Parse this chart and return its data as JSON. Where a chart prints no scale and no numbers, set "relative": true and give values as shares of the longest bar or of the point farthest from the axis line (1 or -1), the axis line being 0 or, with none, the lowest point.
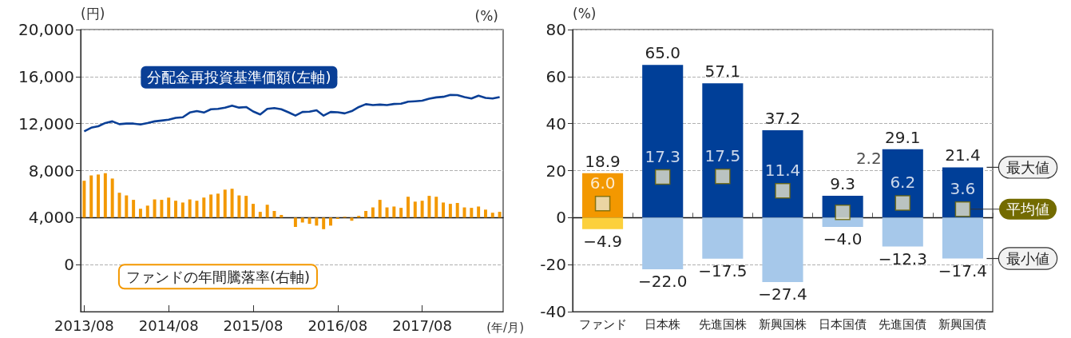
{
  "chart_data": [
    {
      "type": "line",
      "ylabel": "(円)",
      "y2label": "(%)",
      "xlabel": "(年/月)",
      "categories": [
        "2013/08",
        null,
        null,
        null,
        null,
        null,
        null,
        null,
        null,
        null,
        null,
        null,
        "2014/08",
        null,
        null,
        null,
        null,
        null,
        null,
        null,
        null,
        null,
        null,
        null,
        "2015/08",
        null,
        null,
        null,
        null,
        null,
        null,
        null,
        null,
        null,
        null,
        null,
        "2016/08",
        null,
        null,
        null,
        null,
        null,
        null,
        null,
        null,
        null,
        null,
        null,
        "2017/08",
        null,
        null,
        null,
        null,
        null,
        null,
        null,
        null,
        null,
        null,
        null
      ],
      "series": [
        {
          "name": "分配金再投資基準価額(左軸)",
          "color": "#0a3f96",
          "values": [
            11340,
            11650,
            11770,
            12050,
            12190,
            11950,
            12000,
            12000,
            11930,
            12050,
            12190,
            12260,
            12330,
            12490,
            12540,
            12940,
            13060,
            12940,
            13220,
            13250,
            13360,
            13530,
            13360,
            13410,
            13030,
            12780,
            13250,
            13320,
            13220,
            12960,
            12680,
            12990,
            13010,
            13130,
            12680,
            12990,
            12960,
            12870,
            13060,
            13410,
            13650,
            13570,
            13620,
            13570,
            13670,
            13690,
            13860,
            13900,
            13950,
            14120,
            14230,
            14280,
            14440,
            14420,
            14260,
            14140,
            14370,
            14190,
            14140,
            14260
          ]
        }
      ],
      "ylim": [
        -4000,
        20000
      ],
      "yticks": [
        0,
        {
          "value": 4000,
          "label": "4,000"
        },
        {
          "value": 8000,
          "label": "8,000"
        },
        {
          "value": 12000,
          "label": "12,000"
        },
        {
          "value": 16000,
          "label": "16,000"
        },
        {
          "value": 20000,
          "label": "20,000"
        }
      ],
      "grid": "y",
      "marker": "none"
    },
    {
      "type": "bar",
      "relative": true,
      "categories": [
        null,
        null,
        null,
        null,
        null,
        null,
        null,
        null,
        null,
        null,
        null,
        null,
        null,
        null,
        null,
        null,
        null,
        null,
        null,
        null,
        null,
        null,
        null,
        null,
        null,
        null,
        null,
        null,
        null,
        null,
        null,
        null,
        null,
        null,
        null,
        null,
        null,
        null,
        null,
        null,
        null,
        null,
        null,
        null,
        null,
        null,
        null,
        null,
        null,
        null,
        null,
        null,
        null,
        null,
        null,
        null,
        null,
        null,
        null,
        null
      ],
      "series": [
        {
          "name": "ファンドの年間騰落率(右軸)",
          "color": "#f39800",
          "values": [
            0.83,
            0.95,
            0.97,
            1,
            0.88,
            0.56,
            0.5,
            0.4,
            0.2,
            0.27,
            0.41,
            0.4,
            0.45,
            0.38,
            0.34,
            0.41,
            0.38,
            0.45,
            0.52,
            0.54,
            0.63,
            0.65,
            0.5,
            0.49,
            0.31,
            0.13,
            0.29,
            0.15,
            0.06,
            0,
            -0.21,
            -0.11,
            -0.14,
            -0.18,
            -0.26,
            -0.18,
            -0.03,
            0.02,
            -0.07,
            0.04,
            0.15,
            0.23,
            0.4,
            0.23,
            0.25,
            0.22,
            0.47,
            0.36,
            0.38,
            0.49,
            0.47,
            0.34,
            0.31,
            0.33,
            0.23,
            0.22,
            0.25,
            0.18,
            0.11,
            0.13
          ]
        }
      ]
    },
    {
      "type": "bar",
      "ylabel": "(%)",
      "stacked": true,
      "categories": [
        "ファンド",
        "日本株",
        "先進国株",
        "新興国株",
        "日本国債",
        "先進国債",
        "新興国債"
      ],
      "series": [
        {
          "name": "最大値",
          "colors": [
            "#f39800",
            "#003f98",
            "#003f98",
            "#003f98",
            "#003f98",
            "#003f98",
            "#003f98"
          ],
          "values": [
            18.9,
            65.0,
            57.1,
            37.2,
            9.3,
            29.1,
            21.4
          ],
          "value_labels": [
            "18.9",
            "65.0",
            "57.1",
            "37.2",
            "9.3",
            "29.1",
            "21.4"
          ]
        },
        {
          "name": "最小値",
          "colors": [
            "#fcd03c",
            "#a6c8ea",
            "#a6c8ea",
            "#a6c8ea",
            "#a6c8ea",
            "#a6c8ea",
            "#a6c8ea"
          ],
          "values": [
            -4.9,
            -22.0,
            -17.5,
            -27.4,
            -4.0,
            -12.3,
            -17.4
          ],
          "value_labels": [
            "−4.9",
            "−22.0",
            "−17.5",
            "−27.4",
            "−4.0",
            "−12.3",
            "−17.4"
          ]
        },
        {
          "name": "平均値",
          "type": "scatter",
          "marker": "square",
          "color": "#e9e5cc",
          "values": [
            6.0,
            17.3,
            17.5,
            11.4,
            2.2,
            6.2,
            3.6
          ],
          "value_labels": [
            "6.0",
            "17.3",
            "17.5",
            "11.4",
            "2.2",
            "6.2",
            "3.6"
          ]
        }
      ],
      "ylim": [
        -40,
        80
      ],
      "yticks": [
        -40,
        -20,
        0,
        20,
        40,
        60,
        80
      ],
      "grid": "y"
    }
  ]
}
